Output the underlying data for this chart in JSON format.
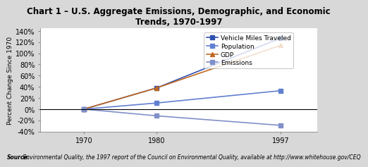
{
  "title_line1": "Chart 1 – U.S. Aggregate Emissions, Demographic, and Economic",
  "title_line2": "Trends, 1970-1997",
  "ylabel": "Percent Change Since 1970",
  "source_bold": "Source:",
  "source_text": " Environmental Quality, the 1997 report of the Council on Environmental Quality, available at http://www.whitehouse.gov/CEQ",
  "years": [
    1970,
    1980,
    1997
  ],
  "series": [
    {
      "name": "Vehicle Miles Traveled",
      "values": [
        0,
        38,
        127
      ],
      "color": "#3050b0",
      "marker": "s",
      "markersize": 4,
      "linewidth": 1.2
    },
    {
      "name": "Population",
      "values": [
        0,
        11,
        33
      ],
      "color": "#6080d0",
      "marker": "s",
      "markersize": 4,
      "linewidth": 1.2
    },
    {
      "name": "GDP",
      "values": [
        0,
        38,
        114
      ],
      "color": "#c06820",
      "marker": "^",
      "markersize": 4,
      "linewidth": 1.2
    },
    {
      "name": "Emissions",
      "values": [
        0,
        -12,
        -29
      ],
      "color": "#8090c8",
      "marker": "s",
      "markersize": 4,
      "linewidth": 1.2
    }
  ],
  "ylim": [
    -40,
    145
  ],
  "yticks": [
    -40,
    -20,
    0,
    20,
    40,
    60,
    80,
    100,
    120,
    140
  ],
  "ytick_labels": [
    "-40%",
    "-20%",
    "0%",
    "20%",
    "40%",
    "60%",
    "80%",
    "100%",
    "120%",
    "140%"
  ],
  "xlim": [
    1964,
    2002
  ],
  "bg_color": "#d8d8d8",
  "plot_bg": "#ffffff",
  "title_fontsize": 8.5,
  "ylabel_fontsize": 6.5,
  "tick_fontsize": 7,
  "legend_fontsize": 6.5,
  "source_fontsize": 5.5
}
